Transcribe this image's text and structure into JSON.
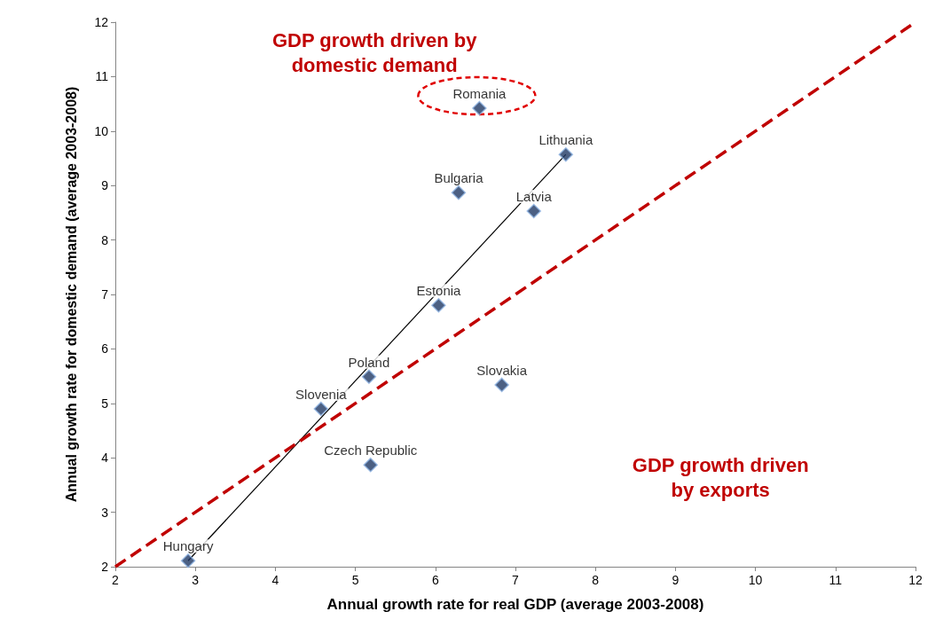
{
  "chart_data": {
    "type": "scatter",
    "xlabel": "Annual growth rate for real GDP (average 2003-2008)",
    "ylabel": "Annual growth rate for domestic demand (average 2003-2008)",
    "xlim": [
      2,
      12
    ],
    "xticks": [
      2,
      3,
      4,
      5,
      6,
      7,
      8,
      9,
      10,
      11,
      12
    ],
    "ylim": [
      2,
      12
    ],
    "yticks": [
      2,
      3,
      4,
      5,
      6,
      7,
      8,
      9,
      10,
      11,
      12
    ],
    "grid": false,
    "marker": "diamond",
    "series": [
      {
        "color": "#1f3864",
        "x": [
          6.55,
          7.63,
          6.29,
          7.23,
          6.04,
          5.17,
          6.83,
          4.57,
          5.19,
          2.91
        ],
        "values": [
          10.42,
          9.57,
          8.87,
          8.53,
          6.8,
          5.49,
          5.34,
          4.9,
          3.87,
          2.11
        ]
      },
      {
        "type": "line",
        "marker": "none",
        "color": "#000000",
        "line_style": "solid",
        "x": [
          2.91,
          7.63
        ],
        "values": [
          2.11,
          9.57
        ]
      },
      {
        "type": "line",
        "marker": "none",
        "color": "#c00000",
        "line_style": "dashed",
        "x": [
          2,
          12
        ],
        "values": [
          2,
          12
        ]
      }
    ],
    "annotations": [
      {
        "text": "Romania",
        "x": 6.55,
        "y": 10.42
      },
      {
        "text": "Lithuania",
        "x": 7.63,
        "y": 9.57
      },
      {
        "text": "Bulgaria",
        "x": 6.29,
        "y": 8.87
      },
      {
        "text": "Latvia",
        "x": 7.23,
        "y": 8.53
      },
      {
        "text": "Estonia",
        "x": 6.04,
        "y": 6.8
      },
      {
        "text": "Poland",
        "x": 5.17,
        "y": 5.49
      },
      {
        "text": "Slovakia",
        "x": 6.83,
        "y": 5.34
      },
      {
        "text": "Slovenia",
        "x": 4.57,
        "y": 4.9
      },
      {
        "text": "Czech Republic",
        "x": 5.19,
        "y": 3.87
      },
      {
        "text": "Hungary",
        "x": 2.91,
        "y": 2.11
      },
      "GDP growth driven by\ndomestic demand",
      "GDP growth driven\nby exports"
    ]
  }
}
